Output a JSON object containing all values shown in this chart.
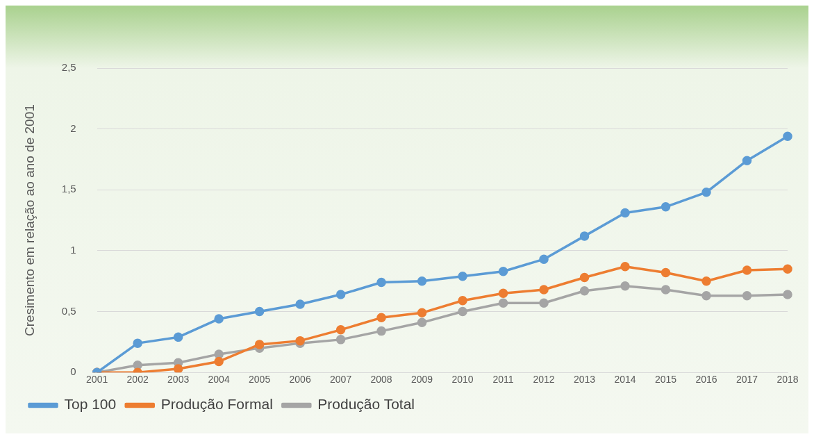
{
  "chart_data": {
    "type": "line",
    "ylabel": "Cresimento em relação ao ano de 2001",
    "categories": [
      "2001",
      "2002",
      "2003",
      "2004",
      "2005",
      "2006",
      "2007",
      "2008",
      "2009",
      "2010",
      "2011",
      "2012",
      "2013",
      "2014",
      "2015",
      "2016",
      "2017",
      "2018"
    ],
    "series": [
      {
        "name": "Top 100",
        "color": "#5b9bd5",
        "values": [
          0,
          0.24,
          0.29,
          0.44,
          0.5,
          0.56,
          0.64,
          0.74,
          0.75,
          0.79,
          0.83,
          0.93,
          1.12,
          1.31,
          1.36,
          1.48,
          1.74,
          1.94
        ]
      },
      {
        "name": "Produção Formal",
        "color": "#ed7d31",
        "values": [
          0,
          0,
          0.03,
          0.09,
          0.23,
          0.26,
          0.35,
          0.45,
          0.49,
          0.59,
          0.65,
          0.68,
          0.78,
          0.87,
          0.82,
          0.75,
          0.84,
          0.85
        ]
      },
      {
        "name": "Produção Total",
        "color": "#a5a5a5",
        "values": [
          0,
          0.06,
          0.08,
          0.15,
          0.2,
          0.24,
          0.27,
          0.34,
          0.41,
          0.5,
          0.57,
          0.57,
          0.67,
          0.71,
          0.68,
          0.63,
          0.63,
          0.64
        ]
      }
    ],
    "ylim": [
      0,
      2.5
    ],
    "yticks": [
      0,
      {
        "value": 0.5,
        "label": "0,5"
      },
      1,
      {
        "value": 1.5,
        "label": "1,5"
      },
      2,
      {
        "value": 2.5,
        "label": "2,5"
      }
    ],
    "grid": "y",
    "legend": "bottom",
    "marker": "circle",
    "line_style": "solid"
  }
}
